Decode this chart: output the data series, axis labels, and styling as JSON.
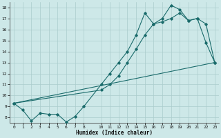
{
  "xlabel": "Humidex (Indice chaleur)",
  "bg_color": "#cde8e8",
  "grid_color": "#aacccc",
  "line_color": "#1a6b6b",
  "xlim": [
    -0.5,
    23.5
  ],
  "ylim": [
    7.5,
    18.5
  ],
  "xticks": [
    0,
    1,
    2,
    3,
    4,
    5,
    6,
    7,
    8,
    10,
    11,
    12,
    13,
    14,
    15,
    16,
    17,
    18,
    19,
    20,
    21,
    22,
    23
  ],
  "yticks": [
    8,
    9,
    10,
    11,
    12,
    13,
    14,
    15,
    16,
    17,
    18
  ],
  "line1_x": [
    0,
    1,
    2,
    3,
    4,
    5,
    6,
    7,
    8,
    10,
    11,
    12,
    13,
    14,
    15,
    16,
    17,
    18,
    19,
    20,
    21,
    22,
    23
  ],
  "line1_y": [
    9.3,
    8.7,
    7.7,
    8.4,
    8.3,
    8.3,
    7.6,
    8.1,
    9.0,
    11.0,
    12.0,
    13.0,
    14.0,
    15.5,
    17.5,
    16.5,
    17.0,
    18.2,
    17.8,
    16.8,
    17.0,
    14.8,
    13.0
  ],
  "line2_x": [
    0,
    10,
    11,
    12,
    13,
    14,
    15,
    16,
    17,
    18,
    19,
    20,
    21,
    22,
    23
  ],
  "line2_y": [
    9.3,
    10.5,
    11.0,
    11.8,
    13.0,
    14.2,
    15.5,
    16.5,
    16.7,
    17.0,
    17.5,
    16.8,
    17.0,
    16.5,
    13.0
  ],
  "line3_x": [
    0,
    23
  ],
  "line3_y": [
    9.3,
    13.0
  ],
  "tick_fontsize": 4.5,
  "xlabel_fontsize": 5.5
}
